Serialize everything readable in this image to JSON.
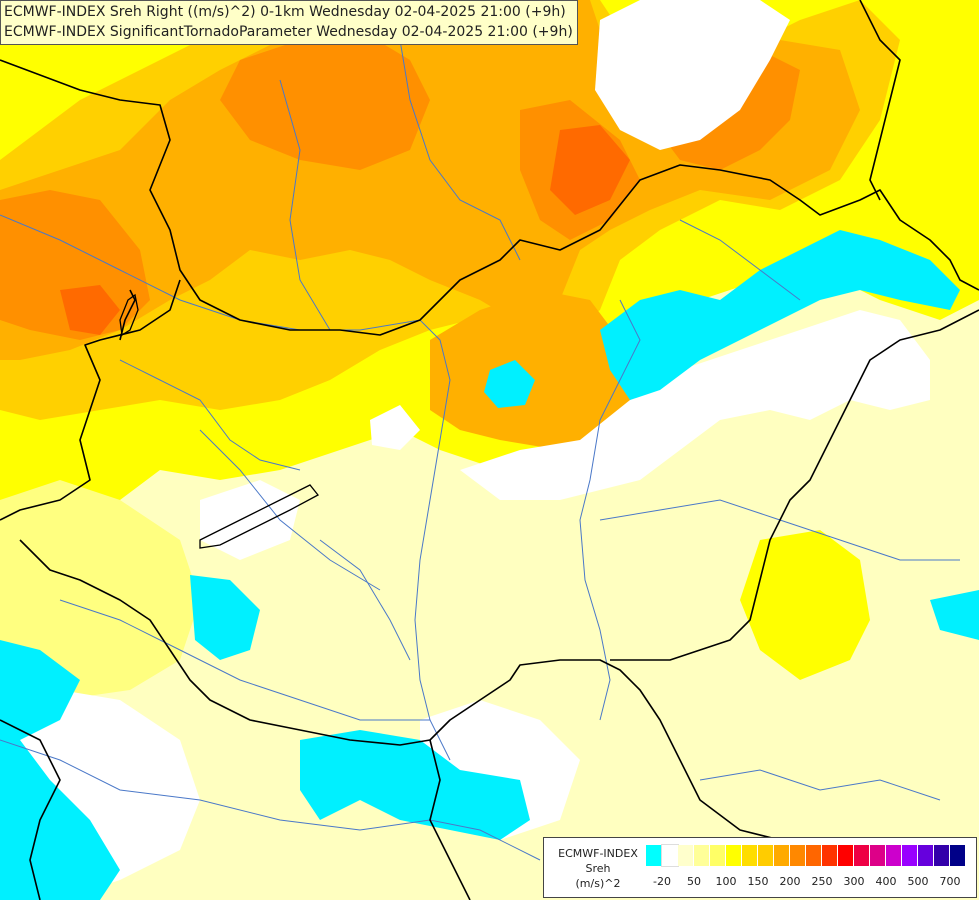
{
  "titles": {
    "line1": "ECMWF-INDEX Sreh Right ((m/s)^2) 0-1km Wednesday 02-04-2025 21:00 (+9h)",
    "line2": "ECMWF-INDEX SignificantTornadoParameter Wednesday 02-04-2025 21:00 (+9h)"
  },
  "legend": {
    "model": "ECMWF-INDEX",
    "parameter": "Sreh",
    "unit": "(m/s)^2",
    "colors": [
      "#00ffff",
      "#ffffff",
      "#ffffcc",
      "#ffff99",
      "#ffff66",
      "#ffff00",
      "#ffdd00",
      "#ffcc00",
      "#ffaa00",
      "#ff8800",
      "#ff6600",
      "#ff3300",
      "#ff0000",
      "#ee0044",
      "#dd0088",
      "#cc00cc",
      "#9900ff",
      "#6600dd",
      "#3300aa",
      "#000088"
    ],
    "ticks": [
      "-20",
      "50",
      "100",
      "150",
      "200",
      "250",
      "300",
      "400",
      "500",
      "700"
    ]
  },
  "field_colors": {
    "cyan": "#00f0ff",
    "white": "#ffffff",
    "pale": "#ffffc0",
    "light_yellow": "#ffff80",
    "yellow": "#ffff00",
    "gold": "#ffd000",
    "amber": "#ffb000",
    "orange": "#ff9000",
    "deep_orange": "#ff6a00",
    "border": "#000000",
    "river": "#4a78c8"
  }
}
